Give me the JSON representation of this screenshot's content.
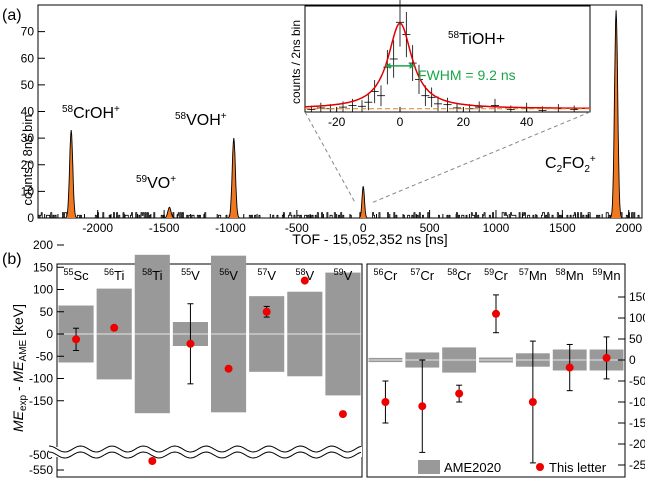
{
  "panel_a": {
    "label": "(a)",
    "ylabel": "counts / 8ns bin",
    "xlabel": "TOF - 15,052,352 ns [ns]",
    "colors": {
      "peak": "#f07820",
      "trace": "#000000"
    },
    "peak_labels": [
      {
        "sup": "58",
        "text": "CrOH",
        "charge": "+"
      },
      {
        "sup": "59",
        "text": "VO",
        "charge": "+"
      },
      {
        "sup": "58",
        "text": "VOH",
        "charge": "+"
      },
      {
        "sup": "",
        "text": "C2FO2",
        "charge": "+"
      }
    ],
    "inset": {
      "title_sup": "58",
      "title": "TiOH+",
      "ylabel": "counts / 2ns bin",
      "fwhm_label": "FWHM = 9.2 ns",
      "colors": {
        "fit": "#e00000",
        "fwhm": "#1aa64a"
      }
    }
  },
  "panel_b": {
    "label": "(b)",
    "ylabel_left": "ME",
    "ylabel_sub1": "exp",
    "ylabel_mid": " - ",
    "ylabel_right": "ME",
    "ylabel_sub2": "AME",
    "ylabel_unit": " [keV]",
    "legend_ame": "AME2020",
    "legend_letter": "This letter",
    "colors": {
      "band": "#999999",
      "point": "#ee0000"
    },
    "left_nuclides": [
      {
        "sup": "55",
        "el": "Sc"
      },
      {
        "sup": "56",
        "el": "Ti"
      },
      {
        "sup": "58",
        "el": "Ti"
      },
      {
        "sup": "55",
        "el": "V"
      },
      {
        "sup": "56",
        "el": "V"
      },
      {
        "sup": "57",
        "el": "V"
      },
      {
        "sup": "58",
        "el": "V"
      },
      {
        "sup": "59",
        "el": "V"
      }
    ],
    "right_nuclides": [
      {
        "sup": "56",
        "el": "Cr"
      },
      {
        "sup": "57",
        "el": "Cr"
      },
      {
        "sup": "58",
        "el": "Cr"
      },
      {
        "sup": "59",
        "el": "Cr"
      },
      {
        "sup": "57",
        "el": "Mn"
      },
      {
        "sup": "58",
        "el": "Mn"
      },
      {
        "sup": "59",
        "el": "Mn"
      }
    ]
  },
  "chart_data": [
    {
      "type": "bar",
      "id": "tof_spectrum",
      "xlabel": "TOF - 15,052,352 ns [ns]",
      "ylabel": "counts / 8ns bin",
      "xlim": [
        -2450,
        2100
      ],
      "ylim": [
        0,
        80
      ],
      "xticks": [
        -2000,
        -1500,
        -1000,
        -500,
        0,
        500,
        1000,
        1500,
        2000
      ],
      "yticks": [
        0,
        10,
        20,
        30,
        40,
        50,
        60,
        70
      ],
      "peaks": [
        {
          "label": "58CrOH+",
          "x": -2200,
          "height": 33,
          "width": 12
        },
        {
          "label": "59VO+",
          "x": -1460,
          "height": 4,
          "width": 12
        },
        {
          "label": "58VOH+",
          "x": -975,
          "height": 30,
          "width": 12
        },
        {
          "label": "58TiOH+",
          "x": 0,
          "height": 12,
          "width": 9
        },
        {
          "label": "C2FO2+",
          "x": 1905,
          "height": 78,
          "width": 12
        }
      ]
    },
    {
      "type": "scatter",
      "id": "tof_inset",
      "title": "58TiOH+",
      "ylabel": "counts / 2ns bin",
      "xlim": [
        -30,
        60
      ],
      "ylim": [
        0,
        13
      ],
      "xticks": [
        -20,
        0,
        20,
        40
      ],
      "fwhm_ns": 9.2,
      "fit": {
        "center": 0,
        "fwhm": 9.2,
        "amplitude": 10.5
      },
      "points": [
        [
          -28,
          0.3
        ],
        [
          -25,
          0.5
        ],
        [
          -22,
          0.4
        ],
        [
          -18,
          0.6
        ],
        [
          -15,
          0.8
        ],
        [
          -12,
          0.7
        ],
        [
          -10,
          1.2
        ],
        [
          -8,
          2.5
        ],
        [
          -6,
          2.0
        ],
        [
          -4,
          5.5
        ],
        [
          -2,
          6.5
        ],
        [
          0,
          11.0
        ],
        [
          2,
          9.5
        ],
        [
          4,
          6.0
        ],
        [
          6,
          4.0
        ],
        [
          8,
          2.0
        ],
        [
          10,
          1.8
        ],
        [
          12,
          1.0
        ],
        [
          15,
          0.9
        ],
        [
          18,
          0.5
        ],
        [
          22,
          0.4
        ],
        [
          25,
          0.6
        ],
        [
          30,
          0.8
        ],
        [
          35,
          0.3
        ],
        [
          40,
          0.5
        ],
        [
          45,
          0.2
        ],
        [
          50,
          0.4
        ],
        [
          55,
          0.3
        ]
      ]
    },
    {
      "type": "scatter",
      "id": "mass_excess_left",
      "ylabel": "ME_exp - ME_AME [keV]",
      "ylim": [
        -200,
        200
      ],
      "yticks": [
        -150,
        -100,
        -50,
        0,
        50,
        100,
        150,
        200
      ],
      "broken_axis": {
        "lower_ticks": [
          -500,
          -550
        ]
      },
      "categories": [
        "55Sc",
        "56Ti",
        "58Ti",
        "55V",
        "56V",
        "57V",
        "58V",
        "59V"
      ],
      "ame2020_uncertainty": [
        64,
        102,
        178,
        27,
        176,
        85,
        95,
        138
      ],
      "this_letter": [
        -12,
        14,
        -520,
        -22,
        -78,
        50,
        120,
        -180
      ],
      "this_letter_err": [
        25,
        0,
        0,
        90,
        0,
        12,
        0,
        0
      ]
    },
    {
      "type": "scatter",
      "id": "mass_excess_right",
      "ylim": [
        -275,
        175
      ],
      "yticks": [
        -250,
        -200,
        -150,
        -100,
        -50,
        0,
        50,
        100,
        150
      ],
      "categories": [
        "56Cr",
        "57Cr",
        "58Cr",
        "59Cr",
        "57Mn",
        "58Mn",
        "59Mn"
      ],
      "ame2020_uncertainty": [
        5,
        18,
        30,
        6,
        16,
        25,
        25
      ],
      "this_letter": [
        -100,
        -110,
        -80,
        110,
        -100,
        -18,
        5
      ],
      "this_letter_err": [
        50,
        110,
        20,
        45,
        145,
        55,
        50
      ]
    }
  ]
}
